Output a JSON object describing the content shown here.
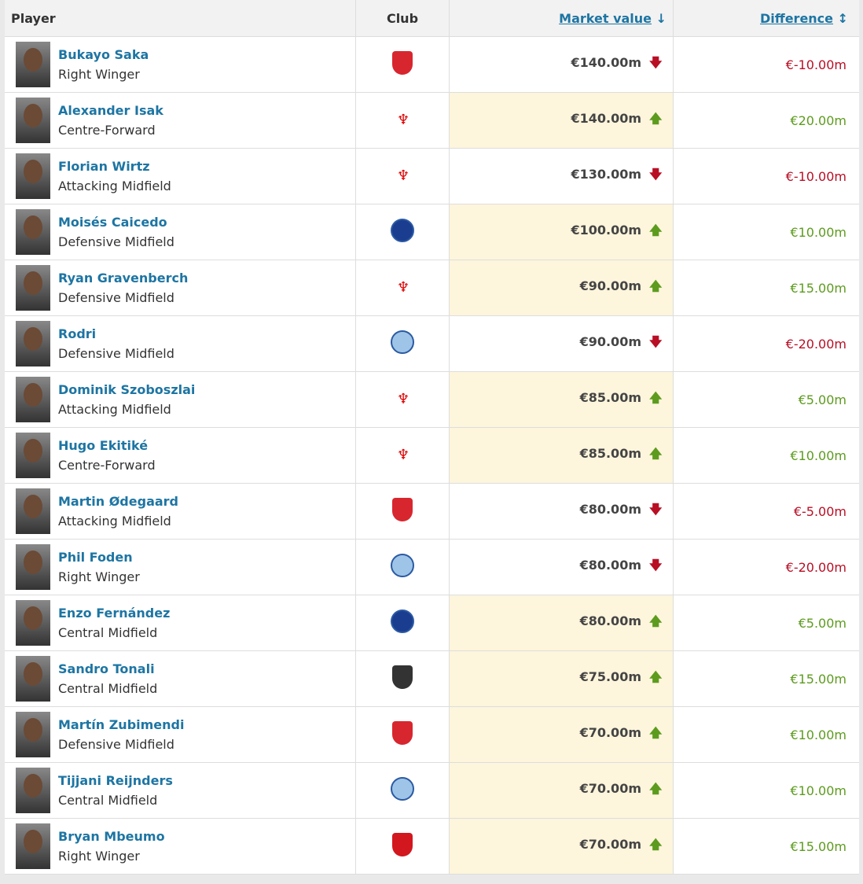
{
  "header": {
    "player": "Player",
    "club": "Club",
    "market_value": "Market value",
    "market_value_sort_icon": "↓",
    "difference": "Difference",
    "difference_sort_icon": "↕"
  },
  "colors": {
    "link": "#1d75a3",
    "up": "#5d9b1e",
    "down": "#b80f25",
    "highlight": "#fdf5dc"
  },
  "rows": [
    {
      "name": "Bukayo Saka",
      "position": "Right Winger",
      "club": "arsenal",
      "value": "€140.00m",
      "trend": "down",
      "difference": "€-10.00m"
    },
    {
      "name": "Alexander Isak",
      "position": "Centre-Forward",
      "club": "liverpool",
      "value": "€140.00m",
      "trend": "up",
      "difference": "€20.00m"
    },
    {
      "name": "Florian Wirtz",
      "position": "Attacking Midfield",
      "club": "liverpool",
      "value": "€130.00m",
      "trend": "down",
      "difference": "€-10.00m"
    },
    {
      "name": "Moisés Caicedo",
      "position": "Defensive Midfield",
      "club": "chelsea",
      "value": "€100.00m",
      "trend": "up",
      "difference": "€10.00m"
    },
    {
      "name": "Ryan Gravenberch",
      "position": "Defensive Midfield",
      "club": "liverpool",
      "value": "€90.00m",
      "trend": "up",
      "difference": "€15.00m"
    },
    {
      "name": "Rodri",
      "position": "Defensive Midfield",
      "club": "man-city",
      "value": "€90.00m",
      "trend": "down",
      "difference": "€-20.00m"
    },
    {
      "name": "Dominik Szoboszlai",
      "position": "Attacking Midfield",
      "club": "liverpool",
      "value": "€85.00m",
      "trend": "up",
      "difference": "€5.00m"
    },
    {
      "name": "Hugo Ekitiké",
      "position": "Centre-Forward",
      "club": "liverpool",
      "value": "€85.00m",
      "trend": "up",
      "difference": "€10.00m"
    },
    {
      "name": "Martin Ødegaard",
      "position": "Attacking Midfield",
      "club": "arsenal",
      "value": "€80.00m",
      "trend": "down",
      "difference": "€-5.00m"
    },
    {
      "name": "Phil Foden",
      "position": "Right Winger",
      "club": "man-city",
      "value": "€80.00m",
      "trend": "down",
      "difference": "€-20.00m"
    },
    {
      "name": "Enzo Fernández",
      "position": "Central Midfield",
      "club": "chelsea",
      "value": "€80.00m",
      "trend": "up",
      "difference": "€5.00m"
    },
    {
      "name": "Sandro Tonali",
      "position": "Central Midfield",
      "club": "newcastle",
      "value": "€75.00m",
      "trend": "up",
      "difference": "€15.00m"
    },
    {
      "name": "Martín Zubimendi",
      "position": "Defensive Midfield",
      "club": "arsenal",
      "value": "€70.00m",
      "trend": "up",
      "difference": "€10.00m"
    },
    {
      "name": "Tijjani Reijnders",
      "position": "Central Midfield",
      "club": "man-city",
      "value": "€70.00m",
      "trend": "up",
      "difference": "€10.00m"
    },
    {
      "name": "Bryan Mbeumo",
      "position": "Right Winger",
      "club": "man-utd",
      "value": "€70.00m",
      "trend": "up",
      "difference": "€15.00m"
    }
  ]
}
